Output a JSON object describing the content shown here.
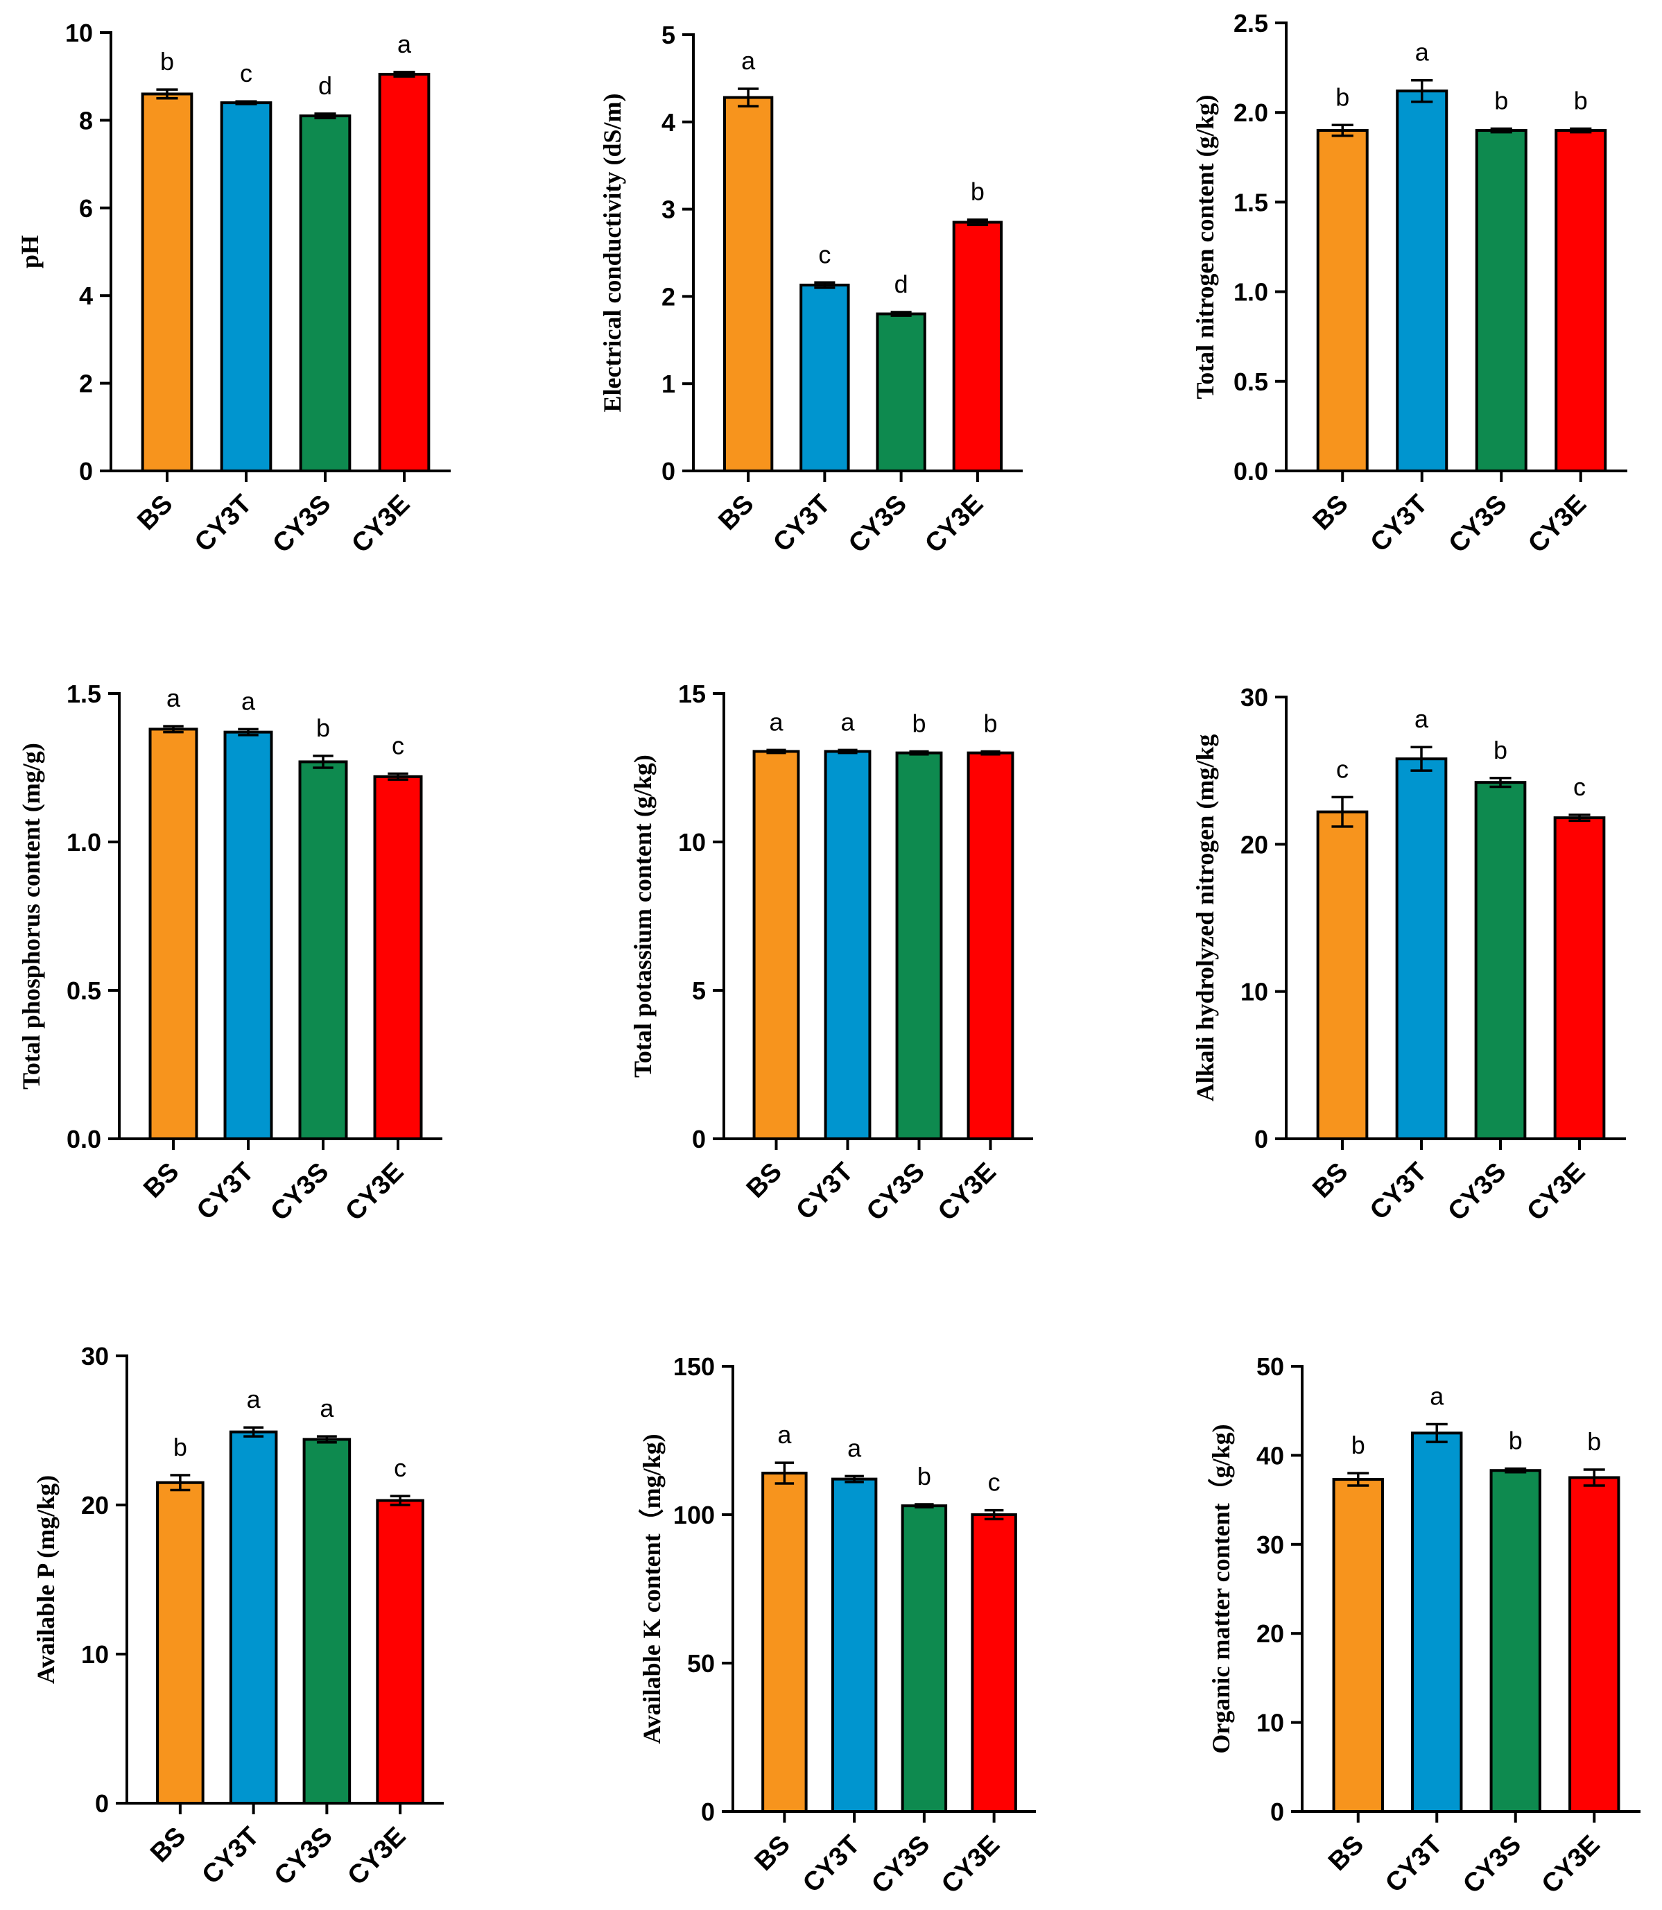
{
  "colors": {
    "BS": "#F7941D",
    "CY3T": "#0095CF",
    "CY3S": "#0E8A4F",
    "CY3E": "#FF0000"
  },
  "chart_data": [
    {
      "type": "bar",
      "title": "",
      "xlabel": "",
      "ylabel": "pH",
      "categories": [
        "BS",
        "CY3T",
        "CY3S",
        "CY3E"
      ],
      "values": [
        8.6,
        8.4,
        8.1,
        9.05
      ],
      "errors": [
        0.1,
        0.03,
        0.05,
        0.05
      ],
      "letters": [
        "b",
        "c",
        "d",
        "a"
      ],
      "ylim": [
        0,
        10
      ],
      "ticks": [
        0,
        2,
        4,
        6,
        8,
        10
      ],
      "tick_labels": [
        "0",
        "2",
        "4",
        "6",
        "8",
        "10"
      ]
    },
    {
      "type": "bar",
      "title": "",
      "xlabel": "",
      "ylabel": "Electrical conductivity (dS/m)",
      "categories": [
        "BS",
        "CY3T",
        "CY3S",
        "CY3E"
      ],
      "values": [
        4.28,
        2.13,
        1.8,
        2.85
      ],
      "errors": [
        0.1,
        0.03,
        0.02,
        0.03
      ],
      "letters": [
        "a",
        "c",
        "d",
        "b"
      ],
      "ylim": [
        0,
        5
      ],
      "ticks": [
        0,
        1,
        2,
        3,
        4,
        5
      ],
      "tick_labels": [
        "0",
        "1",
        "2",
        "3",
        "4",
        "5"
      ]
    },
    {
      "type": "bar",
      "title": "",
      "xlabel": "",
      "ylabel": "Total nitrogen content (g/kg)",
      "categories": [
        "BS",
        "CY3T",
        "CY3S",
        "CY3E"
      ],
      "values": [
        1.9,
        2.12,
        1.9,
        1.9
      ],
      "errors": [
        0.03,
        0.06,
        0.01,
        0.01
      ],
      "letters": [
        "b",
        "a",
        "b",
        "b"
      ],
      "ylim": [
        0,
        2.5
      ],
      "ticks": [
        0,
        0.5,
        1,
        1.5,
        2,
        2.5
      ],
      "tick_labels": [
        "0.0",
        "0.5",
        "1.0",
        "1.5",
        "2.0",
        "2.5"
      ]
    },
    {
      "type": "bar",
      "title": "",
      "xlabel": "",
      "ylabel": "Total phosphorus content (mg/g)",
      "categories": [
        "BS",
        "CY3T",
        "CY3S",
        "CY3E"
      ],
      "values": [
        1.38,
        1.37,
        1.27,
        1.22
      ],
      "errors": [
        0.01,
        0.01,
        0.02,
        0.01
      ],
      "letters": [
        "a",
        "a",
        "b",
        "c"
      ],
      "ylim": [
        0,
        1.5
      ],
      "ticks": [
        0,
        0.5,
        1,
        1.5
      ],
      "tick_labels": [
        "0.0",
        "0.5",
        "1.0",
        "1.5"
      ]
    },
    {
      "type": "bar",
      "title": "",
      "xlabel": "",
      "ylabel": "Total potassium content (g/kg)",
      "categories": [
        "BS",
        "CY3T",
        "CY3S",
        "CY3E"
      ],
      "values": [
        13.05,
        13.05,
        13.0,
        13.0
      ],
      "errors": [
        0.05,
        0.05,
        0.05,
        0.05
      ],
      "letters": [
        "a",
        "a",
        "b",
        "b"
      ],
      "ylim": [
        0,
        15
      ],
      "ticks": [
        0,
        5,
        10,
        15
      ],
      "tick_labels": [
        "0",
        "5",
        "10",
        "15"
      ]
    },
    {
      "type": "bar",
      "title": "",
      "xlabel": "",
      "ylabel": "Alkali hydrolyzed nitrogen (mg/kg",
      "categories": [
        "BS",
        "CY3T",
        "CY3S",
        "CY3E"
      ],
      "values": [
        22.2,
        25.8,
        24.2,
        21.8
      ],
      "errors": [
        1.0,
        0.8,
        0.3,
        0.2
      ],
      "letters": [
        "c",
        "a",
        "b",
        "c"
      ],
      "ylim": [
        0,
        30
      ],
      "ticks": [
        0,
        10,
        20,
        30
      ],
      "tick_labels": [
        "0",
        "10",
        "20",
        "30"
      ]
    },
    {
      "type": "bar",
      "title": "",
      "xlabel": "",
      "ylabel": "Available P (mg/kg)",
      "categories": [
        "BS",
        "CY3T",
        "CY3S",
        "CY3E"
      ],
      "values": [
        21.5,
        24.9,
        24.4,
        20.3
      ],
      "errors": [
        0.5,
        0.3,
        0.2,
        0.3
      ],
      "letters": [
        "b",
        "a",
        "a",
        "c"
      ],
      "ylim": [
        0,
        30
      ],
      "ticks": [
        0,
        10,
        20,
        30
      ],
      "tick_labels": [
        "0",
        "10",
        "20",
        "30"
      ]
    },
    {
      "type": "bar",
      "title": "",
      "xlabel": "",
      "ylabel": "Available K content（mg/kg)",
      "categories": [
        "BS",
        "CY3T",
        "CY3S",
        "CY3E"
      ],
      "values": [
        114,
        112,
        103,
        100
      ],
      "errors": [
        3.5,
        1.0,
        0.5,
        1.5
      ],
      "letters": [
        "a",
        "a",
        "b",
        "c"
      ],
      "ylim": [
        0,
        150
      ],
      "ticks": [
        0,
        50,
        100,
        150
      ],
      "tick_labels": [
        "0",
        "50",
        "100",
        "150"
      ]
    },
    {
      "type": "bar",
      "title": "",
      "xlabel": "",
      "ylabel": "Organic matter content（g/kg)",
      "categories": [
        "BS",
        "CY3T",
        "CY3S",
        "CY3E"
      ],
      "values": [
        37.3,
        42.5,
        38.3,
        37.5
      ],
      "errors": [
        0.7,
        1.0,
        0.2,
        0.9
      ],
      "letters": [
        "b",
        "a",
        "b",
        "b"
      ],
      "ylim": [
        0,
        50
      ],
      "ticks": [
        0,
        10,
        20,
        30,
        40,
        50
      ],
      "tick_labels": [
        "0",
        "10",
        "20",
        "30",
        "40",
        "50"
      ]
    }
  ]
}
